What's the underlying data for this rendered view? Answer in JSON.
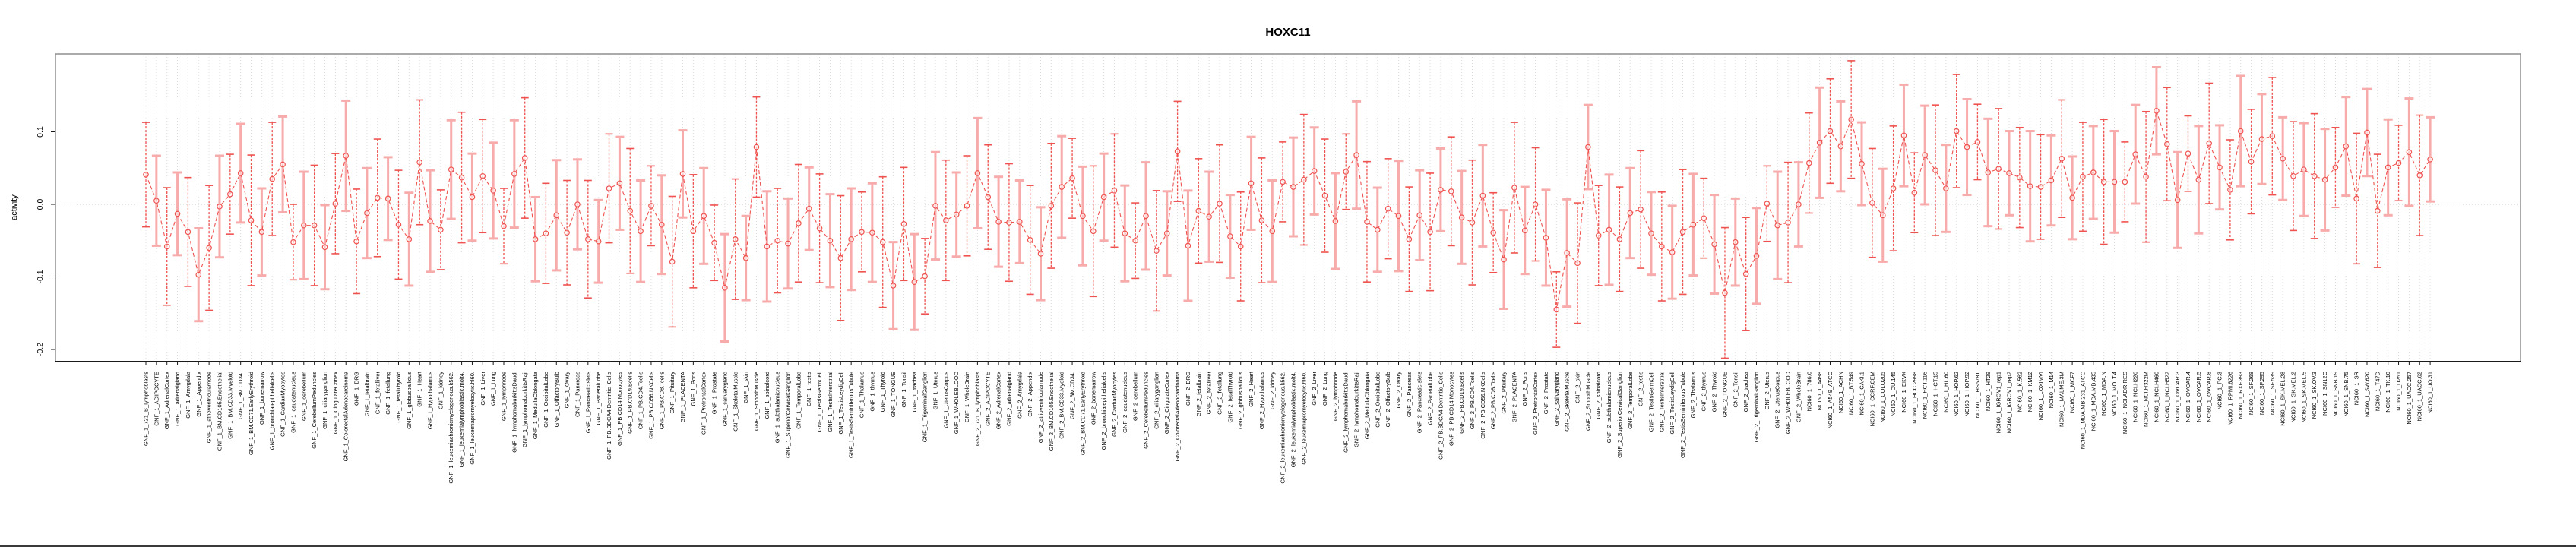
{
  "title": "HOXC11",
  "y_axis": {
    "label": "activity",
    "ticks": [
      0.1,
      0.0,
      -0.1,
      -0.2
    ]
  },
  "colors": {
    "point": "#ef5350",
    "line": "#ef5350",
    "errorbar_dark": "#ef5350",
    "errorbar_light": "#f7abab",
    "gridline": "#dcdcdc",
    "zero_line": "#c8c8c8",
    "box": "#8f8f8f",
    "axis": "#1a1a1a"
  },
  "chart_data": {
    "type": "scatter",
    "subtype": "points-with-error-bars",
    "title": "HOXC11",
    "xlabel": "",
    "ylabel": "activity",
    "ylim": [
      -0.21,
      0.21
    ],
    "y_ticks": [
      0.1,
      0.0,
      -0.1,
      -0.2
    ],
    "grid": "vertical-dotted-per-category, horizontal-dotted-at-zero",
    "legend": "none",
    "categories": [
      "GNF_1_721_B_lymphoblasts",
      "GNF_1_ADIPOCYTE",
      "GNF_1_AdrenalCortex",
      "GNF_1_adrenalgland",
      "GNF_1_Amygdala",
      "GNF_1_Appendix",
      "GNF_1_atrioventricularnode",
      "GNF_1_BM.CD105.Endothelial",
      "GNF_1_BM.CD33.Myeloid",
      "GNF_1_BM.CD34.",
      "GNF_1_BM.CD71.EarlyErythroid",
      "GNF_1_bonemarrow",
      "GNF_1_bronchialepithelialcells",
      "GNF_1_CardiacMyocytes",
      "GNF_1_caudatenucleus",
      "GNF_1_cerebellum",
      "GNF_1_CerebellumPeduncles",
      "GNF_1_ciliaryganglion",
      "GNF_1_CingulateCortex",
      "GNF_1_ColorectalAdenocarcinoma",
      "GNF_1_DRG",
      "GNF_1_fetalbrain",
      "GNF_1_fetalliver",
      "GNF_1_fetallung",
      "GNF_1_fetalThyroid",
      "GNF_1_globuspallidus",
      "GNF_1_Heart",
      "GNF_1_Hypothalamus",
      "GNF_1_kidney",
      "GNF_1_leukemiachronicmyelogenous.k562.",
      "GNF_1_leukemialymphoblastic.molt4.",
      "GNF_1_leukemiapromyelocytic.hl60.",
      "GNF_1_Liver",
      "GNF_1_Lung",
      "GNF_1_lymphnode",
      "GNF_1_lymphomaburkittsDaudi",
      "GNF_1_lymphomaburkittsRaji",
      "GNF_1_MedullaOblongata",
      "GNF_1_OccipitalLobe",
      "GNF_1_OlfactoryBulb",
      "GNF_1_Ovary",
      "GNF_1_Pancreas",
      "GNF_1_PancreaticIslets",
      "GNF_1_ParietalLobe",
      "GNF_1_PB.BDCA4.Dentritic_Cells",
      "GNF_1_PB.CD14.Monocytes",
      "GNF_1_PB.CD19.Bcells",
      "GNF_1_PB.CD4.Tcells",
      "GNF_1_PB.CD56.NKCells",
      "GNF_1_PB.CD8.Tcells",
      "GNF_1_Pituitary",
      "GNF_1_PLACENTA",
      "GNF_1_Pons",
      "GNF_1_PrefrontalCortex",
      "GNF_1_Prostate",
      "GNF_1_salivarygland",
      "GNF_1_SkeletalMuscle",
      "GNF_1_skin",
      "GNF_1_SmoothMuscle",
      "GNF_1_spinalcord",
      "GNF_1_subthalamicnucleus",
      "GNF_1_SuperiorCervicalGanglion",
      "GNF_1_TemporalLobe",
      "GNF_1_testis",
      "GNF_1_TestisGermCell",
      "GNF_1_TestisInterstitial",
      "GNF_1_TestisLeydigCell",
      "GNF_1_TestisSeminiferousTubule",
      "GNF_1_Thalamus",
      "GNF_1_thymus",
      "GNF_1_Thyroid",
      "GNF_1_TONGUE",
      "GNF_1_Tonsil",
      "GNF_1_trachea",
      "GNF_1_TrigeminalGanglion",
      "GNF_1_Uterus",
      "GNF_1_UterusCorpus",
      "GNF_1_WHOLEBLOOD",
      "GNF_1_WholeBrain",
      "GNF_2_721_B_lymphoblasts",
      "GNF_2_ADIPOCYTE",
      "GNF_2_AdrenalCortex",
      "GNF_2_adrenalgland",
      "GNF_2_Amygdala",
      "GNF_2_Appendix",
      "GNF_2_atrioventricularnode",
      "GNF_2_BM.CD105.Endothelial",
      "GNF_2_BM.CD33.Myeloid",
      "GNF_2_BM.CD34.",
      "GNF_2_BM.CD71.EarlyErythroid",
      "GNF_2_bonemarrow",
      "GNF_2_bronchialepithelialcells",
      "GNF_2_CardiacMyocytes",
      "GNF_2_caudatenucleus",
      "GNF_2_cerebellum",
      "GNF_2_CerebellumPeduncles",
      "GNF_2_ciliaryganglion",
      "GNF_2_CingulateCortex",
      "GNF_2_ColorectalAdenocarcinoma",
      "GNF_2_DRG",
      "GNF_2_fetalbrain",
      "GNF_2_fetalliver",
      "GNF_2_fetallung",
      "GNF_2_fetalThyroid",
      "GNF_2_globuspallidus",
      "GNF_2_Heart",
      "GNF_2_Hypothalamus",
      "GNF_2_kidney",
      "GNF_2_leukemiachronicmyelogenous.k562.",
      "GNF_2_leukemialymphoblastic.molt4.",
      "GNF_2_leukemiapromyelocytic.hl60.",
      "GNF_2_Liver",
      "GNF_2_Lung",
      "GNF_2_lymphnode",
      "GNF_2_lymphomaburkittsDaudi",
      "GNF_2_lymphomaburkittsRaji",
      "GNF_2_MedullaOblongata",
      "GNF_2_OccipitalLobe",
      "GNF_2_OlfactoryBulb",
      "GNF_2_Ovary",
      "GNF_2_Pancreas",
      "GNF_2_PancreaticIslets",
      "GNF_2_ParietalLobe",
      "GNF_2_PB.BDCA4.Dentritic_Cells",
      "GNF_2_PB.CD14.Monocytes",
      "GNF_2_PB.CD19.Bcells",
      "GNF_2_PB.CD4.Tcells",
      "GNF_2_PB.CD56.NKCells",
      "GNF_2_PB.CD8.Tcells",
      "GNF_2_Pituitary",
      "GNF_2_PLACENTA",
      "GNF_2_Pons",
      "GNF_2_PrefrontalCortex",
      "GNF_2_Prostate",
      "GNF_2_salivarygland",
      "GNF_2_SkeletalMuscle",
      "GNF_2_skin",
      "GNF_2_SmoothMuscle",
      "GNF_2_spinalcord",
      "GNF_2_subthalamicnucleus",
      "GNF_2_SuperiorCervicalGanglion",
      "GNF_2_TemporalLobe",
      "GNF_2_testis",
      "GNF_2_TestisGermCell",
      "GNF_2_TestisInterstitial",
      "GNF_2_TestisLeydigCell",
      "GNF_2_TestisSeminiferousTubule",
      "GNF_2_Thalamus",
      "GNF_2_thymus",
      "GNF_2_Thyroid",
      "GNF_2_TONGUE",
      "GNF_2_Tonsil",
      "GNF_2_trachea",
      "GNF_2_TrigeminalGanglion",
      "GNF_2_Uterus",
      "GNF_2_UterusCorpus",
      "GNF_2_WHOLEBLOOD",
      "GNF_2_WholeBrain",
      "NCI60_1_786.0",
      "NCI60_1_A498",
      "NCI60_1_A549_ATCC",
      "NCI60_1_ACHN",
      "NCI60_1_BT.549",
      "NCI60_1_CAKI.1",
      "NCI60_1_CCRF.CEM",
      "NCI60_1_COLO205",
      "NCI60_1_DU.145",
      "NCI60_1_EKVX",
      "NCI60_1_HCC.2998",
      "NCI60_1_HCT.116",
      "NCI60_1_HCT.15",
      "NCI60_1_HL.60",
      "NCI60_1_HOP.62",
      "NCI60_1_HOP.92",
      "NCI60_1_HS578T",
      "NCI60_1_HT29",
      "NCI60_1_IGROV1_rep1",
      "NCI60_1_IGROV1_rep2",
      "NCI60_1_K.562",
      "NCI60_1_KM12",
      "NCI60_1_LOXIMVI",
      "NCI60_1_M14",
      "NCI60_1_MALME.3M",
      "NCI60_1_MCF7",
      "NCI60_1_MDA.MB.231_ATCC",
      "NCI60_1_MDA.MB.435",
      "NCI60_1_MDA.N",
      "NCI60_1_MOLT.4",
      "NCI60_1_NCI.ADR.RES",
      "NCI60_1_NCI.H226",
      "NCI60_1_NCI.H322M",
      "NCI60_1_NCI.H460",
      "NCI60_1_NCI.H522",
      "NCI60_1_OVCAR.3",
      "NCI60_1_OVCAR.4",
      "NCI60_1_OVCAR.5",
      "NCI60_1_OVCAR.8",
      "NCI60_1_PC.3",
      "NCI60_1_RPMI.8226",
      "NCI60_1_RXF.393",
      "NCI60_1_SF.268",
      "NCI60_1_SF.295",
      "NCI60_1_SF.539",
      "NCI60_1_SK.MEL.28",
      "NCI60_1_SK.MEL.2",
      "NCI60_1_SK.MEL.5",
      "NCI60_1_SK.OV.3",
      "NCI60_1_SN12C",
      "NCI60_1_SNB.19",
      "NCI60_1_SNB.75",
      "NCI60_1_SR",
      "NCI60_1_SW.620",
      "NCI60_1_T47D",
      "NCI60_1_TK.10",
      "NCI60_1_U251",
      "NCI60_1_UACC.257",
      "NCI60_1_UACC.62",
      "NCI60_1_UO.31"
    ],
    "values": [
      0.041,
      0.005,
      -0.058,
      -0.013,
      -0.038,
      -0.097,
      -0.06,
      -0.003,
      0.014,
      0.043,
      -0.022,
      -0.038,
      0.035,
      0.055,
      -0.052,
      -0.029,
      -0.029,
      -0.059,
      0.001,
      0.067,
      -0.051,
      -0.012,
      0.009,
      0.008,
      -0.028,
      -0.048,
      0.058,
      -0.023,
      -0.035,
      0.048,
      0.037,
      0.01,
      0.039,
      0.019,
      -0.03,
      0.042,
      0.064,
      -0.048,
      -0.04,
      -0.015,
      -0.039,
      0.0,
      -0.048,
      -0.051,
      0.022,
      0.029,
      -0.009,
      -0.037,
      -0.002,
      -0.028,
      -0.079,
      0.042,
      -0.037,
      -0.016,
      -0.053,
      -0.115,
      -0.048,
      -0.074,
      0.079,
      -0.058,
      -0.05,
      -0.054,
      -0.026,
      -0.006,
      -0.033,
      -0.05,
      -0.074,
      -0.048,
      -0.038,
      -0.039,
      -0.052,
      -0.112,
      -0.027,
      -0.107,
      -0.099,
      -0.002,
      -0.022,
      -0.014,
      -0.002,
      0.043,
      0.01,
      -0.024,
      -0.025,
      -0.024,
      -0.049,
      -0.068,
      -0.002,
      0.024,
      0.036,
      -0.016,
      -0.037,
      0.01,
      0.019,
      -0.04,
      -0.05,
      -0.016,
      -0.064,
      -0.04,
      0.073,
      -0.057,
      -0.009,
      -0.017,
      0.001,
      -0.044,
      -0.058,
      0.029,
      -0.022,
      -0.037,
      0.031,
      0.024,
      0.034,
      0.046,
      0.012,
      -0.023,
      0.045,
      0.068,
      -0.024,
      -0.035,
      -0.006,
      -0.016,
      -0.048,
      -0.015,
      -0.038,
      0.02,
      0.018,
      -0.018,
      -0.025,
      0.012,
      -0.039,
      -0.076,
      0.023,
      -0.036,
      0.0,
      -0.046,
      -0.145,
      -0.067,
      -0.081,
      0.079,
      -0.043,
      -0.035,
      -0.048,
      -0.012,
      -0.007,
      -0.04,
      -0.058,
      -0.066,
      -0.038,
      -0.028,
      -0.019,
      -0.055,
      -0.122,
      -0.052,
      -0.096,
      -0.071,
      0.001,
      -0.029,
      -0.025,
      0.0,
      0.057,
      0.085,
      0.101,
      0.08,
      0.117,
      0.056,
      0.002,
      -0.015,
      0.022,
      0.095,
      0.016,
      0.068,
      0.047,
      0.022,
      0.101,
      0.079,
      0.086,
      0.044,
      0.049,
      0.043,
      0.037,
      0.025,
      0.024,
      0.033,
      0.063,
      0.009,
      0.038,
      0.044,
      0.031,
      0.031,
      0.031,
      0.069,
      0.038,
      0.129,
      0.083,
      0.006,
      0.07,
      0.034,
      0.084,
      0.051,
      0.02,
      0.101,
      0.059,
      0.09,
      0.094,
      0.063,
      0.039,
      0.048,
      0.039,
      0.034,
      0.051,
      0.08,
      0.008,
      0.099,
      -0.009,
      0.051,
      0.057,
      0.072,
      0.04,
      0.062
    ],
    "error_half": [
      0.072,
      0.062,
      0.081,
      0.057,
      0.075,
      0.064,
      0.086,
      0.07,
      0.055,
      0.068,
      0.09,
      0.06,
      0.078,
      0.066,
      0.052,
      0.074,
      0.083,
      0.058,
      0.069,
      0.076,
      0.072,
      0.062,
      0.081,
      0.057,
      0.075,
      0.064,
      0.086,
      0.07,
      0.055,
      0.068,
      0.09,
      0.06,
      0.078,
      0.066,
      0.052,
      0.074,
      0.083,
      0.058,
      0.069,
      0.076,
      0.072,
      0.062,
      0.081,
      0.057,
      0.075,
      0.064,
      0.086,
      0.07,
      0.055,
      0.068,
      0.09,
      0.06,
      0.078,
      0.066,
      0.052,
      0.074,
      0.083,
      0.058,
      0.069,
      0.076,
      0.072,
      0.062,
      0.081,
      0.057,
      0.075,
      0.064,
      0.086,
      0.07,
      0.055,
      0.068,
      0.09,
      0.06,
      0.078,
      0.066,
      0.052,
      0.074,
      0.083,
      0.058,
      0.069,
      0.076,
      0.072,
      0.062,
      0.081,
      0.057,
      0.075,
      0.064,
      0.086,
      0.07,
      0.055,
      0.068,
      0.09,
      0.06,
      0.078,
      0.066,
      0.052,
      0.074,
      0.083,
      0.058,
      0.069,
      0.076,
      0.072,
      0.062,
      0.081,
      0.057,
      0.075,
      0.064,
      0.086,
      0.07,
      0.055,
      0.068,
      0.09,
      0.06,
      0.078,
      0.066,
      0.052,
      0.074,
      0.083,
      0.058,
      0.069,
      0.076,
      0.072,
      0.062,
      0.081,
      0.057,
      0.075,
      0.064,
      0.086,
      0.07,
      0.055,
      0.068,
      0.09,
      0.06,
      0.078,
      0.066,
      0.052,
      0.074,
      0.083,
      0.058,
      0.069,
      0.076,
      0.072,
      0.062,
      0.081,
      0.057,
      0.075,
      0.064,
      0.086,
      0.07,
      0.055,
      0.068,
      0.09,
      0.06,
      0.078,
      0.066,
      0.052,
      0.074,
      0.083,
      0.058,
      0.069,
      0.076,
      0.072,
      0.062,
      0.081,
      0.057,
      0.075,
      0.064,
      0.086,
      0.07,
      0.055,
      0.068,
      0.09,
      0.06,
      0.078,
      0.066,
      0.052,
      0.074,
      0.083,
      0.058,
      0.069,
      0.076,
      0.072,
      0.062,
      0.081,
      0.057,
      0.075,
      0.064,
      0.086,
      0.07,
      0.055,
      0.068,
      0.09,
      0.06,
      0.078,
      0.066,
      0.052,
      0.074,
      0.083,
      0.058,
      0.069,
      0.076,
      0.072,
      0.062,
      0.081,
      0.057,
      0.075,
      0.064,
      0.086,
      0.07,
      0.055,
      0.068,
      0.09,
      0.06,
      0.078,
      0.066,
      0.052,
      0.074,
      0.083,
      0.058
    ]
  }
}
